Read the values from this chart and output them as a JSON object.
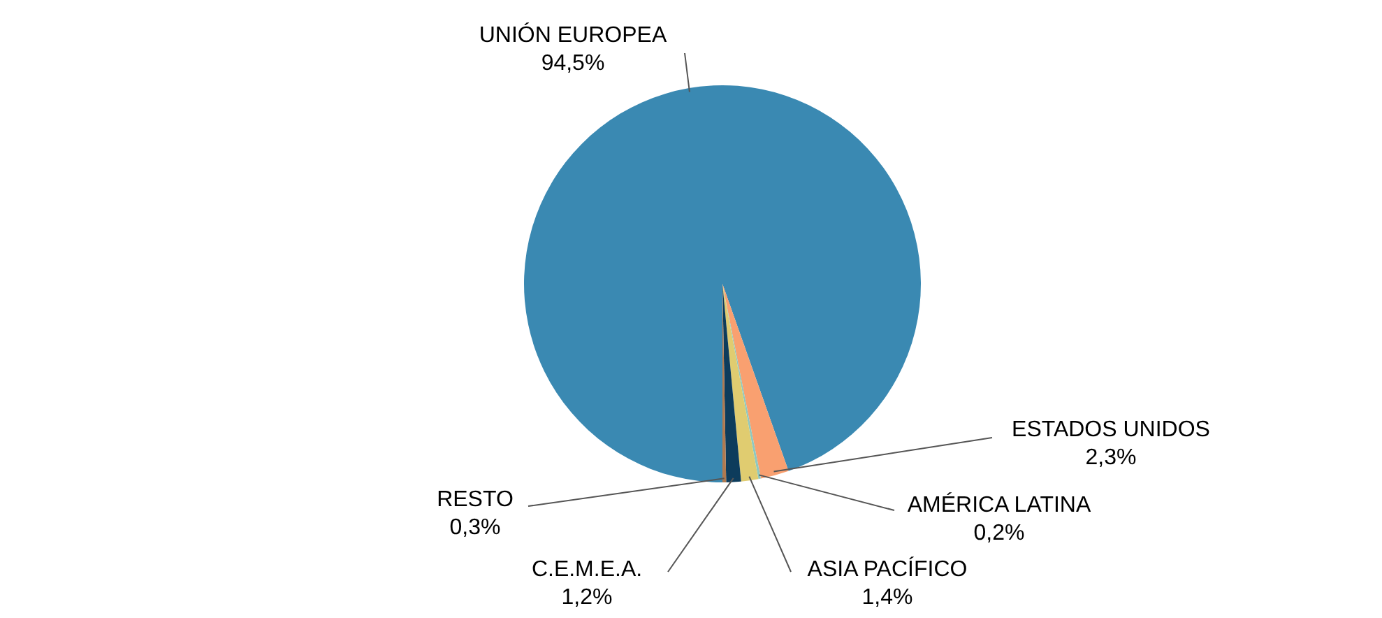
{
  "chart_data": {
    "type": "pie",
    "categories": [
      "UNIÓN EUROPEA",
      "ESTADOS UNIDOS",
      "AMÉRICA LATINA",
      "ASIA PACÍFICO",
      "C.E.M.E.A.",
      "RESTO"
    ],
    "values": [
      94.5,
      2.3,
      0.2,
      1.4,
      1.2,
      0.3
    ],
    "colors": [
      "#3a89b2",
      "#f9a070",
      "#8ec8c0",
      "#e0cc70",
      "#0d3c5c",
      "#b07a50"
    ],
    "value_labels": [
      "94,5%",
      "2,3%",
      "0,2%",
      "1,4%",
      "1,2%",
      "0,3%"
    ]
  }
}
